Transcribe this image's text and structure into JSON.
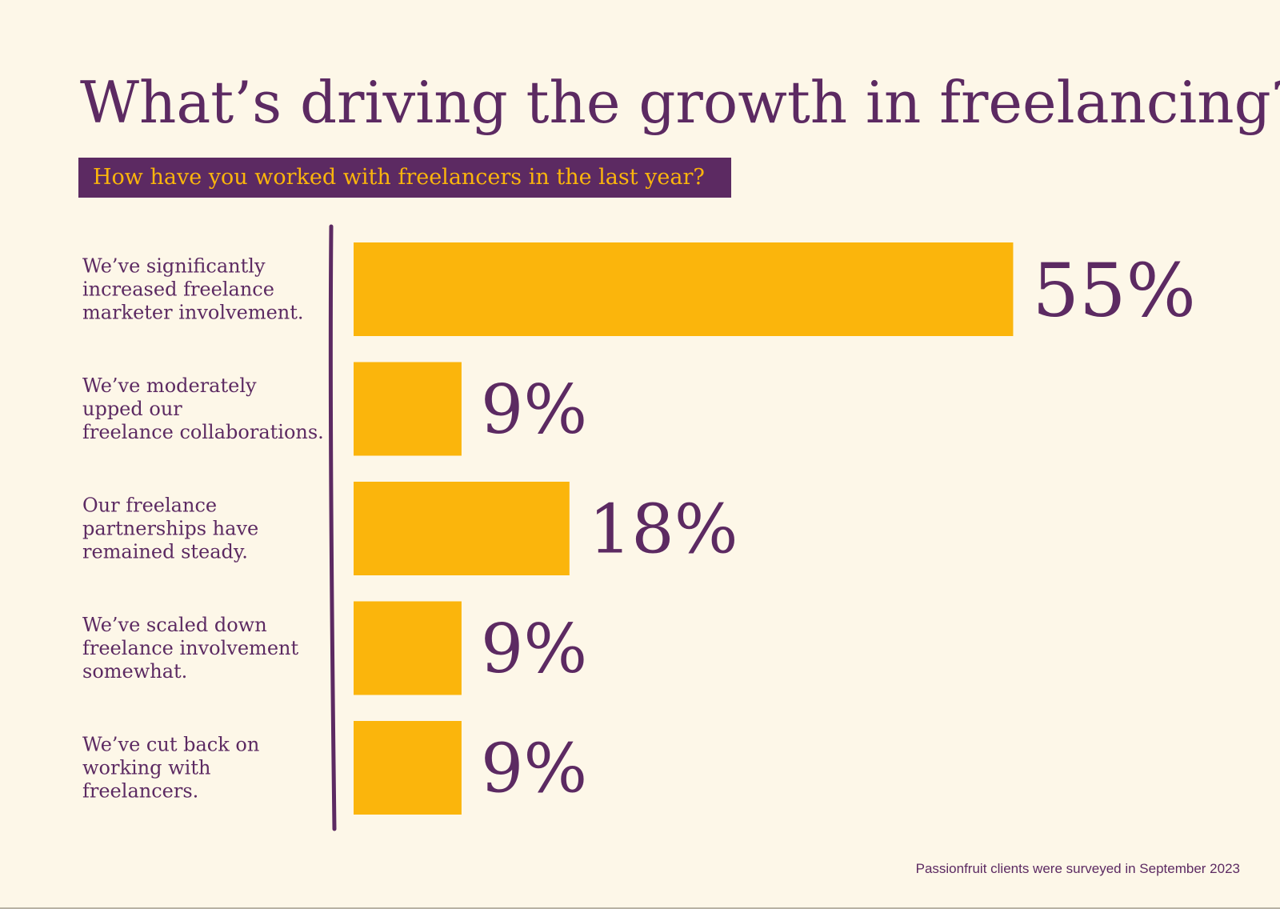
{
  "header": {
    "title": "What’s driving the growth in freelancing?",
    "subtitle": "How have you worked with freelancers in the last year?"
  },
  "footer": {
    "note": "Passionfruit clients were surveyed in September 2023"
  },
  "colors": {
    "background": "#fdf7e8",
    "primary": "#5c2a62",
    "bar": "#fbb50c",
    "subtitle_text": "#fbb50c"
  },
  "chart_data": {
    "type": "bar",
    "orientation": "horizontal",
    "categories": [
      [
        "We’ve significantly",
        "increased freelance",
        "marketer involvement."
      ],
      [
        "We’ve moderately",
        "upped our",
        "freelance collaborations."
      ],
      [
        "Our freelance",
        "partnerships have",
        "remained steady."
      ],
      [
        "We’ve scaled down",
        "freelance involvement",
        "somewhat."
      ],
      [
        "We’ve cut back on",
        "working with",
        "freelancers."
      ]
    ],
    "values": [
      55,
      9,
      18,
      9,
      9
    ],
    "value_labels": [
      "55%",
      "9%",
      "18%",
      "9%",
      "9%"
    ],
    "unit": "%",
    "title": "What’s driving the growth in freelancing?",
    "subtitle": "How have you worked with freelancers in the last year?",
    "grid": false,
    "legend": "none"
  }
}
